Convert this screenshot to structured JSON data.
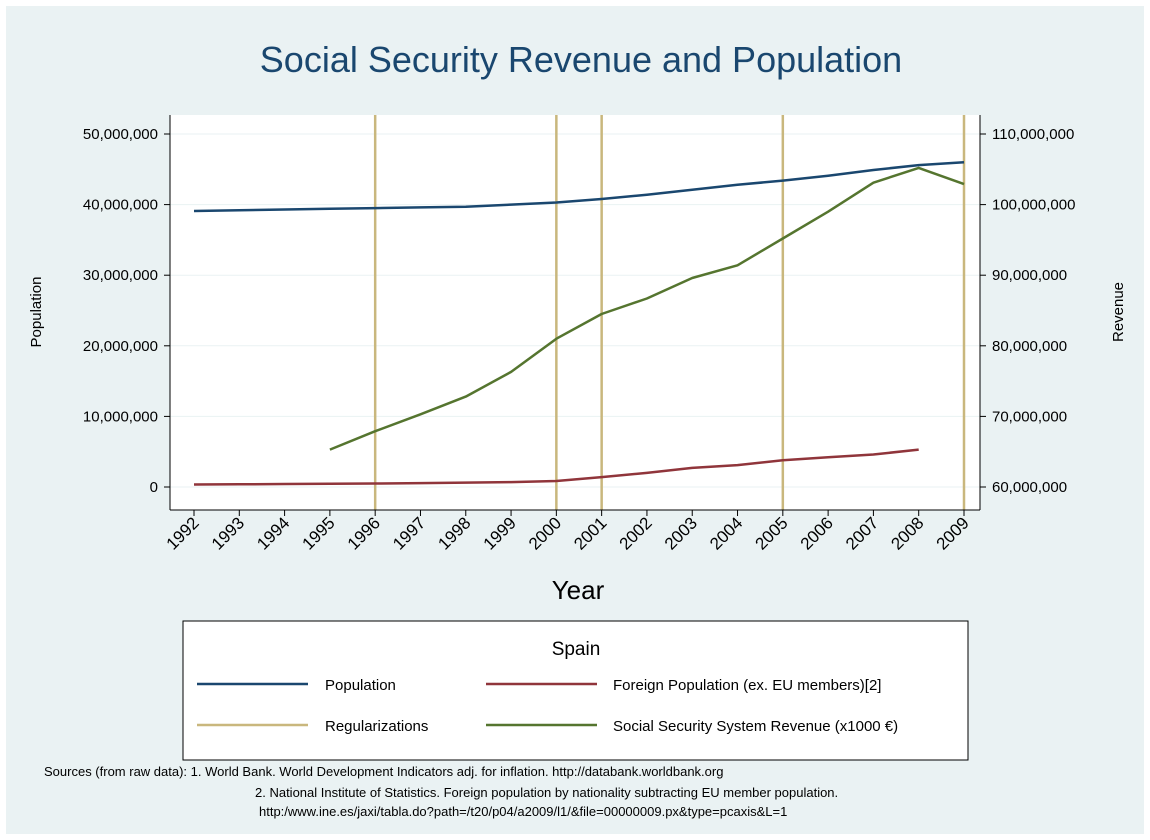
{
  "chart_data": {
    "type": "line",
    "title": "Social Security Revenue and Population",
    "xlabel": "Year",
    "ylabel_left": "Population",
    "ylabel_right": "Revenue",
    "x": [
      1992,
      1993,
      1994,
      1995,
      1996,
      1997,
      1998,
      1999,
      2000,
      2001,
      2002,
      2003,
      2004,
      2005,
      2006,
      2007,
      2008,
      2009
    ],
    "x_tick_labels": [
      "1992",
      "1993",
      "1994",
      "1995",
      "1996",
      "1997",
      "1998",
      "1999",
      "2000",
      "2001",
      "2002",
      "2003",
      "2004",
      "2005",
      "2006",
      "2007",
      "2008",
      "2009"
    ],
    "ylim_left": [
      0,
      50000000
    ],
    "ylim_right": [
      60000000,
      110000000
    ],
    "y_ticks_left": [
      "0",
      "10,000,000",
      "20,000,000",
      "30,000,000",
      "40,000,000",
      "50,000,000"
    ],
    "y_ticks_left_values": [
      0,
      10000000,
      20000000,
      30000000,
      40000000,
      50000000
    ],
    "y_ticks_right": [
      "60,000,000",
      "70,000,000",
      "80,000,000",
      "90,000,000",
      "100,000,000",
      "110,000,000"
    ],
    "y_ticks_right_values": [
      60000000,
      70000000,
      80000000,
      90000000,
      100000000,
      110000000
    ],
    "grid": true,
    "legend_position": "bottom",
    "legend_title": "Spain",
    "regularization_years": [
      1996,
      2000,
      2001,
      2005,
      2009
    ],
    "regularization_color": "#c9b77d",
    "regularization_label": "Regularizations",
    "series": [
      {
        "name": "Population",
        "axis": "left",
        "color": "#1a476f",
        "x": [
          1992,
          1993,
          1994,
          1995,
          1996,
          1997,
          1998,
          1999,
          2000,
          2001,
          2002,
          2003,
          2004,
          2005,
          2006,
          2007,
          2008,
          2009
        ],
        "values": [
          39100000,
          39200000,
          39300000,
          39400000,
          39500000,
          39600000,
          39700000,
          40000000,
          40300000,
          40800000,
          41400000,
          42100000,
          42800000,
          43400000,
          44100000,
          44900000,
          45600000,
          46000000
        ]
      },
      {
        "name": "Foreign Population (ex. EU members)[2]",
        "axis": "left",
        "color": "#90353b",
        "x": [
          1992,
          1993,
          1994,
          1995,
          1996,
          1997,
          1998,
          1999,
          2000,
          2001,
          2002,
          2003,
          2004,
          2005,
          2006,
          2007,
          2008
        ],
        "values": [
          350000,
          380000,
          420000,
          460000,
          500000,
          550000,
          620000,
          700000,
          850000,
          1400000,
          2000000,
          2700000,
          3100000,
          3800000,
          4200000,
          4600000,
          5300000
        ]
      },
      {
        "name": "Social Security System Revenue (x1000 €)",
        "axis": "right",
        "color": "#55752f",
        "x": [
          1995,
          1996,
          1997,
          1998,
          1999,
          2000,
          2001,
          2002,
          2003,
          2004,
          2005,
          2006,
          2007,
          2008,
          2009
        ],
        "values": [
          65300000,
          67900000,
          70300000,
          72800000,
          76300000,
          81000000,
          84500000,
          86700000,
          89600000,
          91400000,
          95200000,
          99000000,
          103100000,
          105200000,
          102900000
        ]
      }
    ],
    "legend_rows": [
      [
        "Population",
        "Foreign Population (ex. EU members)[2]"
      ],
      [
        "Regularizations",
        "Social Security System Revenue (x1000 €)"
      ]
    ]
  },
  "notes": {
    "line1": "Sources (from raw data): 1. World Bank. World Development Indicators adj. for inflation. http://databank.worldbank.org",
    "line2": "2. National Institute of Statistics. Foreign population by nationality subtracting EU member population.",
    "line3": "http:/www.ine.es/jaxi/tabla.do?path=/t20/p04/a2009/l1/&file=00000009.px&type=pcaxis&L=1"
  }
}
